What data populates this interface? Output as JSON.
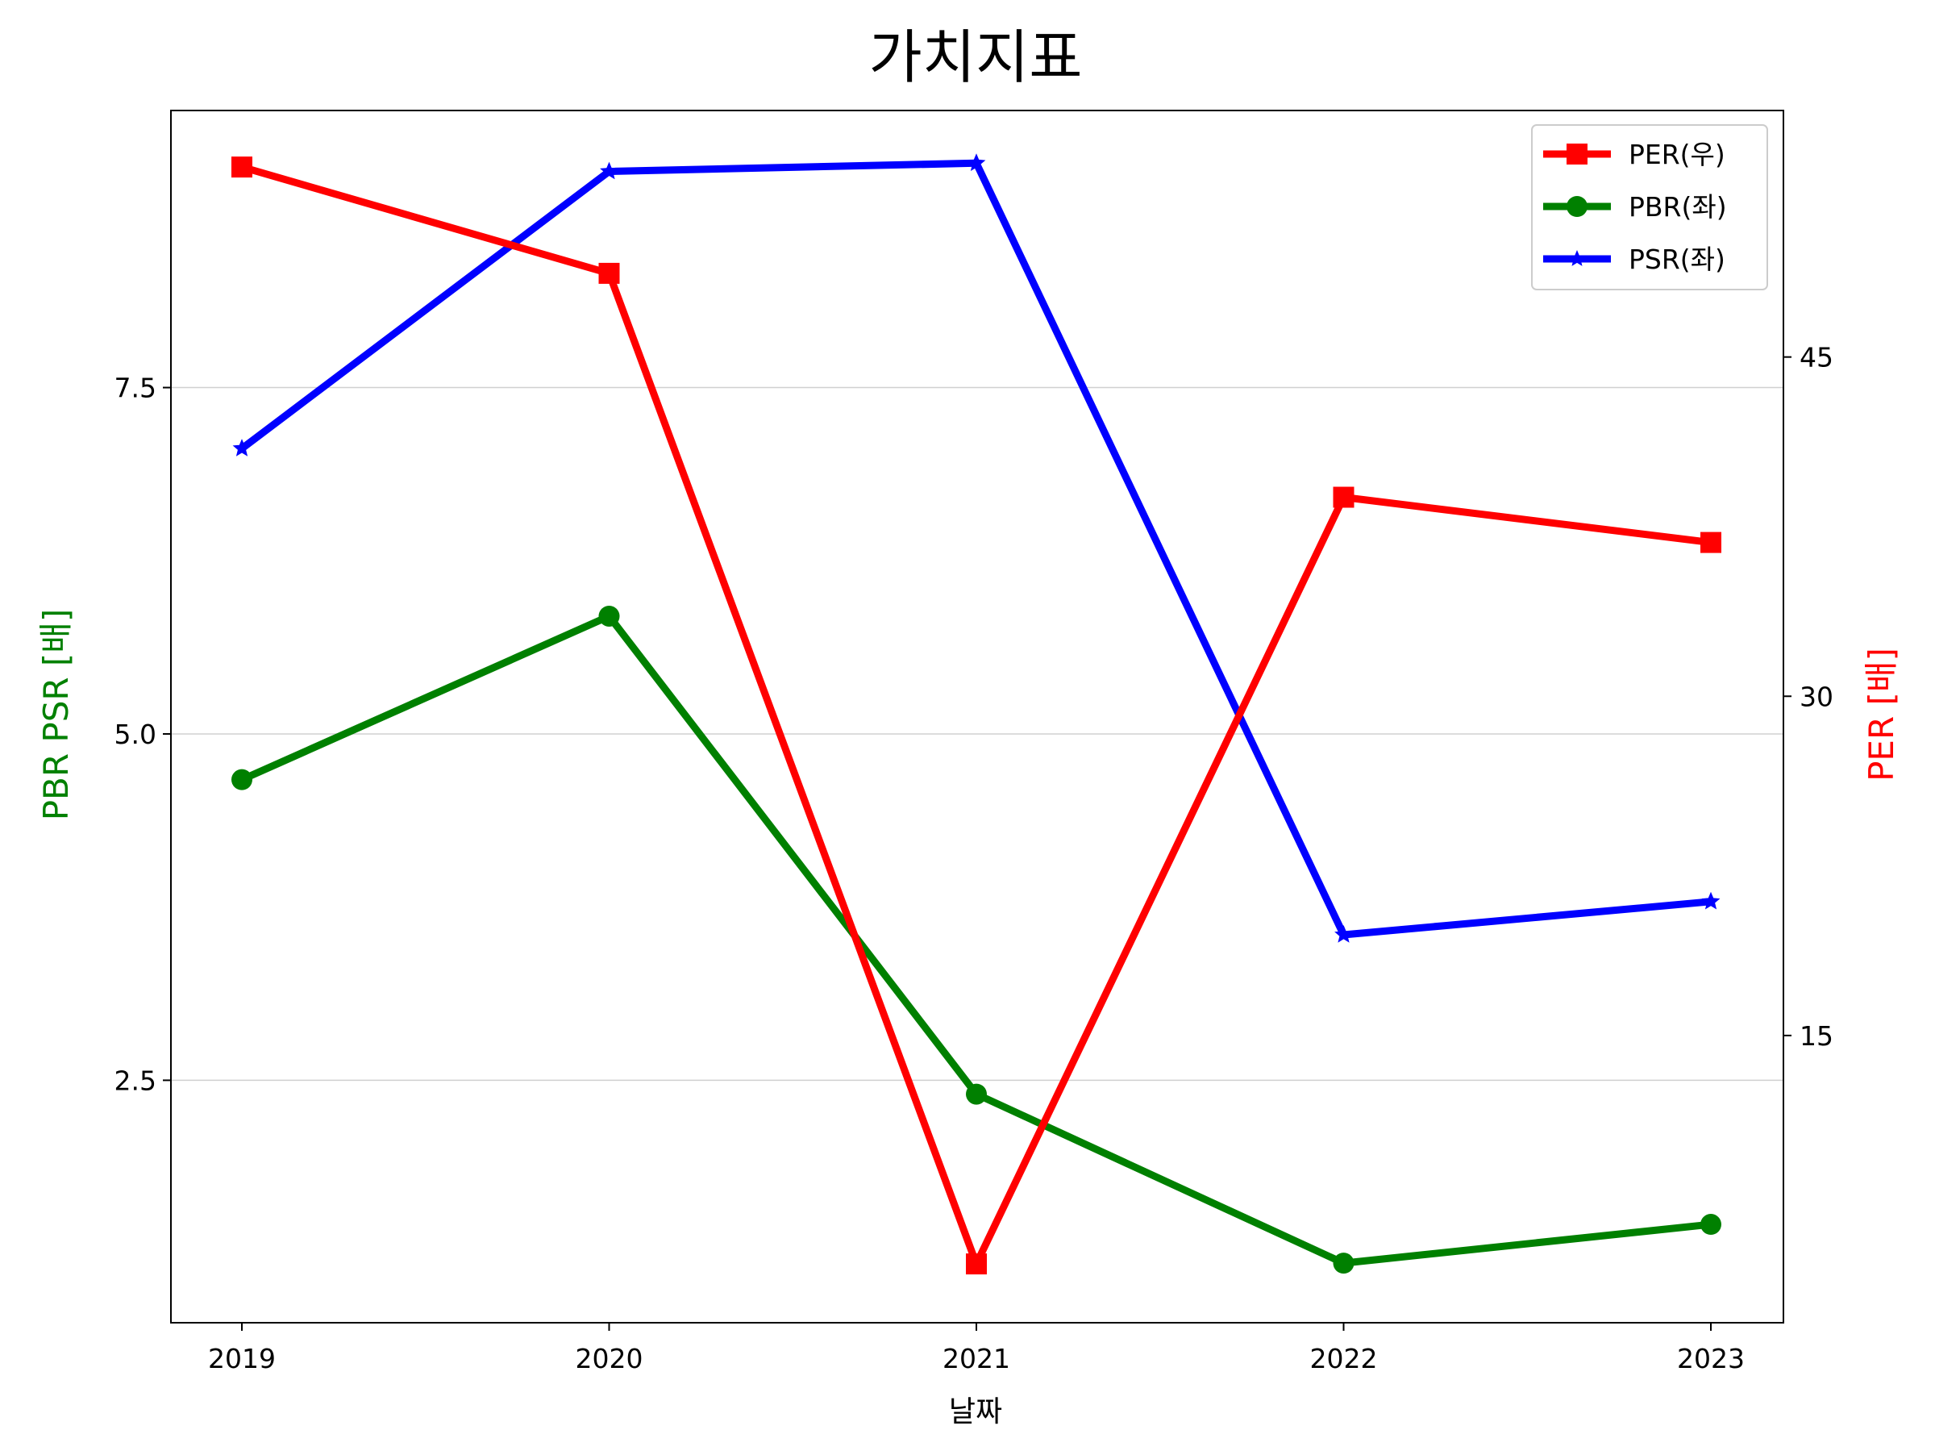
{
  "chart_data": {
    "type": "line",
    "title": "가치지표",
    "xlabel": "날짜",
    "ylabel_left": "PBR PSR [배]",
    "ylabel_right": "PER [배]",
    "categories": [
      "2019",
      "2020",
      "2021",
      "2022",
      "2023"
    ],
    "left_axis": {
      "ylim": [
        0.75,
        9.5
      ],
      "ticks": [
        2.5,
        5.0,
        7.5
      ],
      "tick_labels": [
        "2.5",
        "5.0",
        "7.5"
      ]
    },
    "right_axis": {
      "ylim": [
        2.3,
        55.9
      ],
      "ticks": [
        15,
        30,
        45
      ],
      "tick_labels": [
        "15",
        "30",
        "45"
      ]
    },
    "grid": "horizontal, left axis",
    "legend_position": "top-right",
    "series": [
      {
        "name": "PER(우)",
        "axis": "right",
        "marker": "square",
        "color": "#ff0000",
        "values": [
          53.4,
          48.7,
          4.9,
          38.8,
          36.8
        ]
      },
      {
        "name": "PBR(좌)",
        "axis": "left",
        "marker": "circle",
        "color": "#008000",
        "values": [
          4.67,
          5.85,
          2.4,
          1.18,
          1.46
        ]
      },
      {
        "name": "PSR(좌)",
        "axis": "left",
        "marker": "star",
        "color": "#0000ff",
        "values": [
          7.06,
          9.06,
          9.12,
          3.55,
          3.79
        ]
      }
    ]
  }
}
